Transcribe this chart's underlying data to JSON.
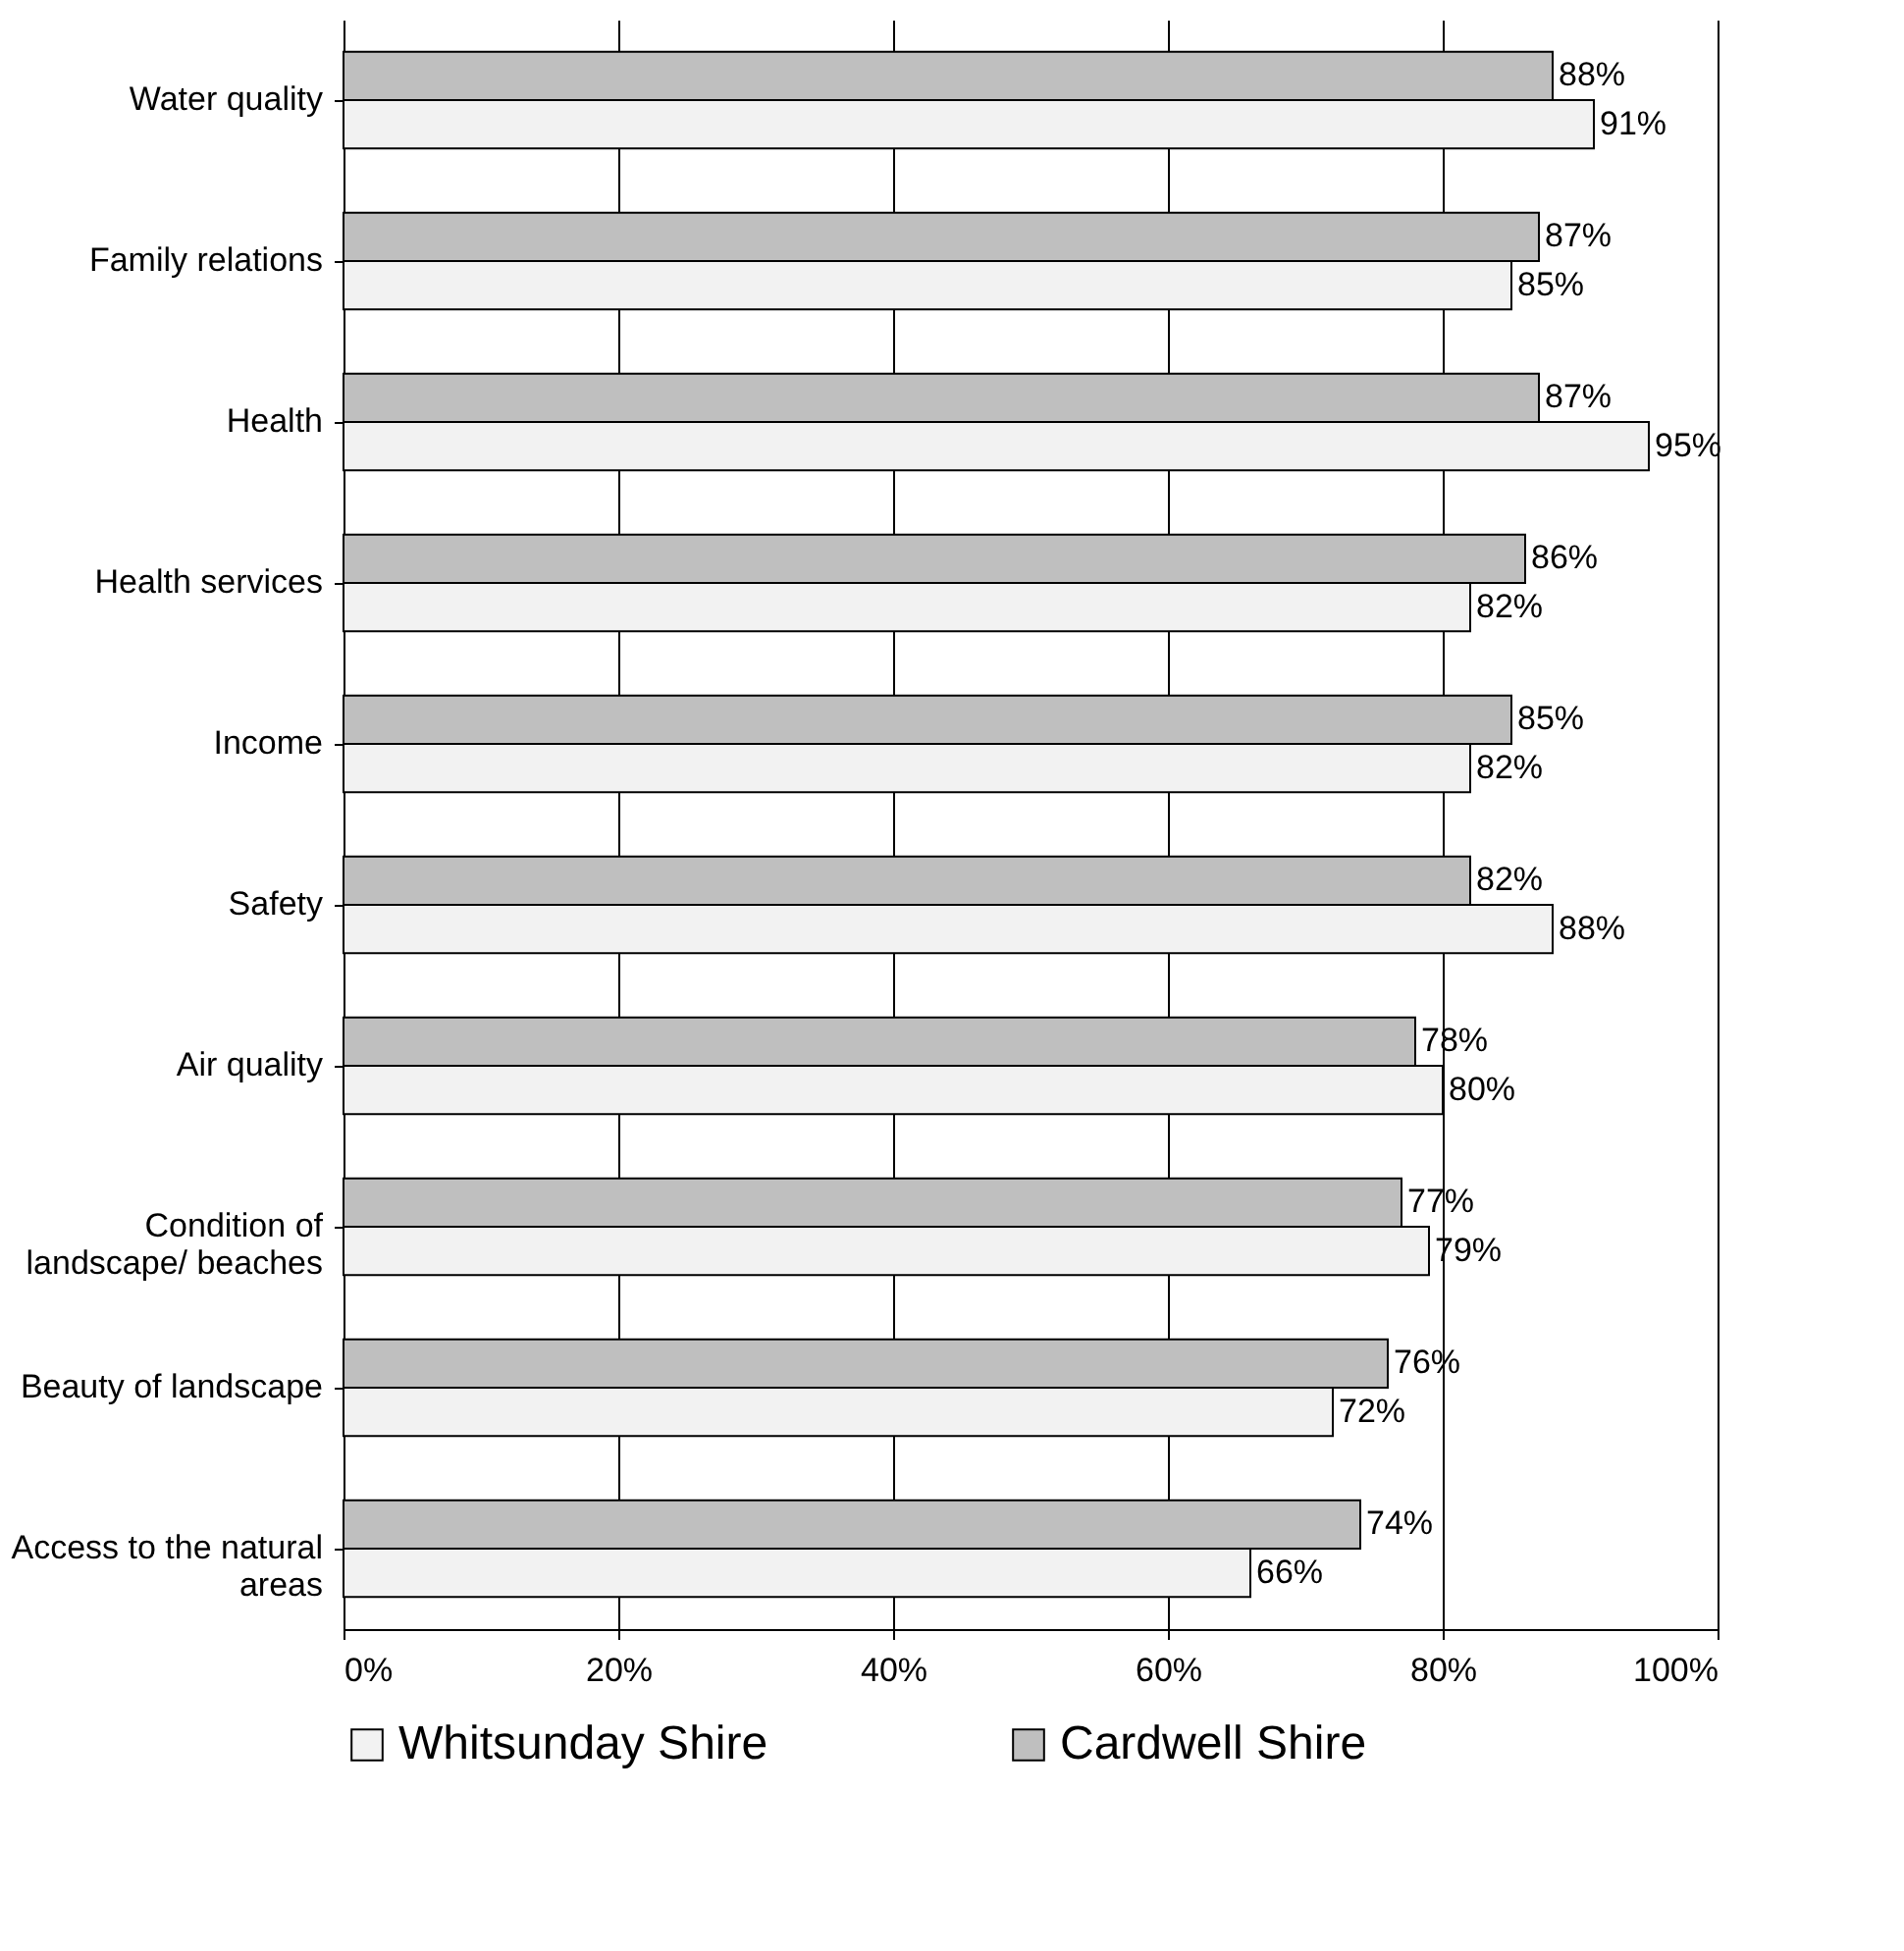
{
  "chart_data": {
    "type": "bar",
    "orientation": "horizontal",
    "categories": [
      "Water quality",
      "Family relations",
      "Health",
      "Health services",
      "Income",
      "Safety",
      "Air quality",
      "Condition of landscape/ beaches",
      "Beauty of landscape",
      "Access to the natural areas"
    ],
    "series": [
      {
        "name": "Whitsunday Shire",
        "color": "#f2f2f2",
        "values": [
          91,
          85,
          95,
          82,
          82,
          88,
          80,
          79,
          72,
          66
        ],
        "value_labels": [
          "91%",
          "85%",
          "95%",
          "82%",
          "82%",
          "88%",
          "80%",
          "79%",
          "72%",
          "66%"
        ]
      },
      {
        "name": "Cardwell Shire",
        "color": "#bfbfbf",
        "values": [
          88,
          87,
          87,
          86,
          85,
          82,
          78,
          77,
          76,
          74
        ],
        "value_labels": [
          "88%",
          "87%",
          "87%",
          "86%",
          "85%",
          "82%",
          "78%",
          "77%",
          "76%",
          "74%"
        ]
      }
    ],
    "xlim": [
      0,
      100
    ],
    "xticks": [
      {
        "value": 0,
        "label": "0%"
      },
      {
        "value": 20,
        "label": "20%"
      },
      {
        "value": 40,
        "label": "40%"
      },
      {
        "value": 60,
        "label": "60%"
      },
      {
        "value": 80,
        "label": "80%"
      },
      {
        "value": 100,
        "label": "100%"
      }
    ],
    "grid": "x",
    "legend": "bottom"
  }
}
